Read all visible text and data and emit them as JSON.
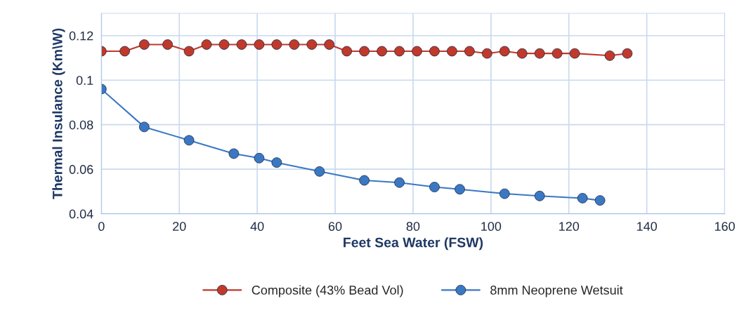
{
  "chart_data": {
    "type": "line",
    "xlabel": "Feet Sea Water (FSW)",
    "ylabel": "Thermal Insulance (Km\\W)",
    "xlim": [
      0,
      160
    ],
    "xticks": [
      0,
      20,
      40,
      60,
      80,
      100,
      120,
      140,
      160
    ],
    "ylim": [
      0.04,
      0.13
    ],
    "yticks": [
      0.04,
      0.06,
      0.08,
      {
        "value": 0.1,
        "label": "0.1"
      },
      0.12
    ],
    "grid": true,
    "legend": "bottom",
    "marker": "circle",
    "line_style": "solid",
    "series": [
      {
        "name": "Composite (43% Bead Vol)",
        "color": "#c0392b",
        "x": [
          0,
          6,
          11,
          17,
          22.5,
          27,
          31.5,
          36,
          40.5,
          45,
          49.5,
          54,
          58.5,
          63,
          67.5,
          72,
          76.5,
          81,
          85.5,
          90,
          94.5,
          99,
          103.5,
          108,
          112.5,
          117,
          121.5,
          130.5,
          135
        ],
        "values": [
          0.113,
          0.113,
          0.116,
          0.116,
          0.113,
          0.116,
          0.116,
          0.116,
          0.116,
          0.116,
          0.116,
          0.116,
          0.116,
          0.113,
          0.113,
          0.113,
          0.113,
          0.113,
          0.113,
          0.113,
          0.113,
          0.112,
          0.113,
          0.112,
          0.112,
          0.112,
          0.112,
          0.111,
          0.112
        ]
      },
      {
        "name": "8mm Neoprene Wetsuit",
        "color": "#3a78c4",
        "x": [
          0,
          11,
          22.5,
          34,
          40.5,
          45,
          56,
          67.5,
          76.5,
          85.5,
          92,
          103.5,
          112.5,
          123.5,
          128
        ],
        "values": [
          0.096,
          0.079,
          0.073,
          0.067,
          0.065,
          0.063,
          0.059,
          0.055,
          0.054,
          0.052,
          0.051,
          0.049,
          0.048,
          0.047,
          0.046
        ]
      }
    ]
  }
}
